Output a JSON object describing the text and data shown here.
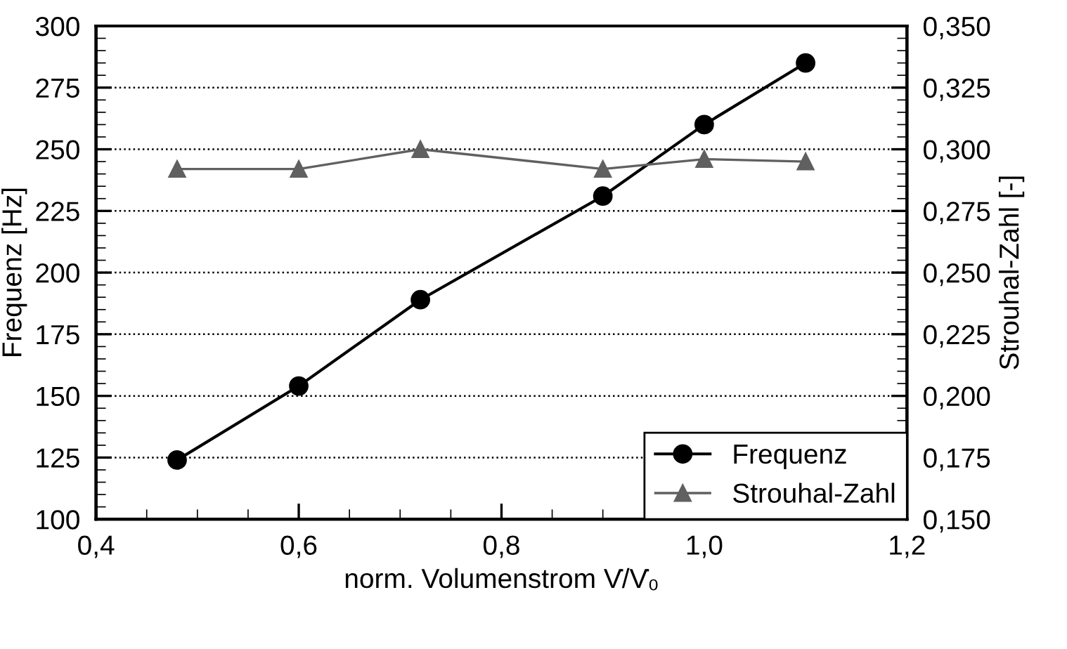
{
  "chart_data": {
    "type": "line",
    "xlabel": "norm. Volumenstrom V̇/V̇₀",
    "ylabel": "Frequenz [Hz]",
    "y2label": "Strouhal-Zahl [-]",
    "x": [
      0.48,
      0.6,
      0.72,
      0.9,
      1.0,
      1.1
    ],
    "series": [
      {
        "name": "Frequenz",
        "color": "#000000",
        "marker": "circle",
        "values": [
          124,
          154,
          189,
          231,
          260,
          285
        ]
      },
      {
        "name": "Strouhal-Zahl",
        "color": "#606060",
        "marker": "triangle",
        "axis": "y2",
        "values": [
          0.292,
          0.292,
          0.3,
          0.292,
          0.296,
          0.295
        ]
      }
    ],
    "xlim": [
      0.4,
      1.2
    ],
    "xticks": [
      {
        "value": 0.4,
        "label": "0,4"
      },
      {
        "value": 0.6,
        "label": "0,6"
      },
      {
        "value": 0.8,
        "label": "0,8"
      },
      {
        "value": 1.0,
        "label": "1,0"
      },
      {
        "value": 1.2,
        "label": "1,2"
      }
    ],
    "ylim": [
      100,
      300
    ],
    "yticks": [
      100,
      125,
      150,
      175,
      200,
      225,
      250,
      275,
      300
    ],
    "y2lim": [
      0.15,
      0.35
    ],
    "y2ticks": [
      {
        "value": 0.15,
        "label": "0,150"
      },
      {
        "value": 0.175,
        "label": "0,175"
      },
      {
        "value": 0.2,
        "label": "0,200"
      },
      {
        "value": 0.225,
        "label": "0,225"
      },
      {
        "value": 0.25,
        "label": "0,250"
      },
      {
        "value": 0.275,
        "label": "0,275"
      },
      {
        "value": 0.3,
        "label": "0,300"
      },
      {
        "value": 0.325,
        "label": "0,325"
      },
      {
        "value": 0.35,
        "label": "0,350"
      }
    ],
    "grid": "y",
    "legend": "bottom right",
    "line_style": "solid"
  }
}
